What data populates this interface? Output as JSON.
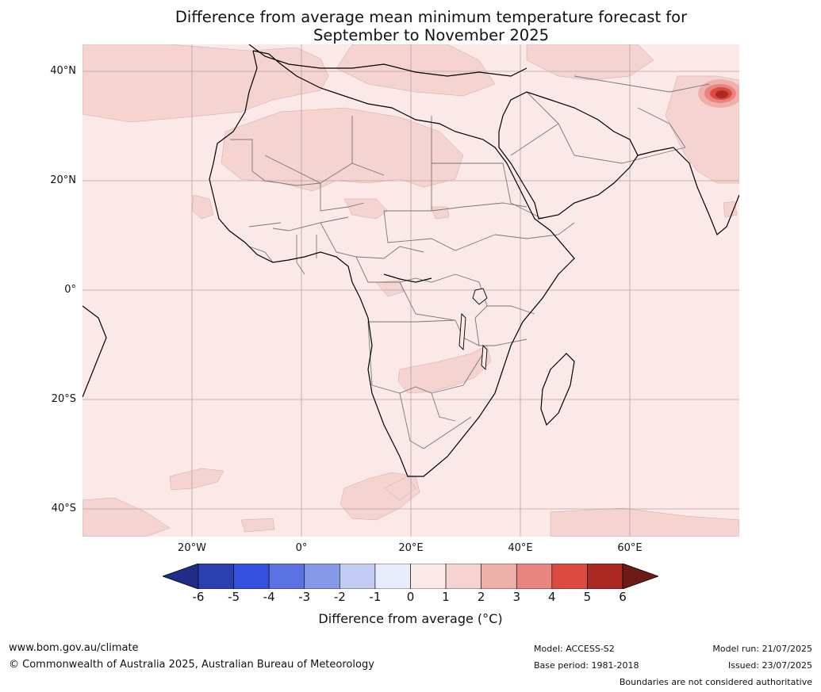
{
  "title": {
    "line1": "Difference from average mean minimum temperature forecast for",
    "line2": "September to November 2025"
  },
  "map": {
    "region": "Africa and Middle East",
    "lat_labels": [
      "40°N",
      "20°N",
      "0°",
      "20°S",
      "40°S"
    ],
    "lon_labels": [
      "20°W",
      "0°",
      "20°E",
      "40°E",
      "60°E"
    ],
    "background_color": "#fbe9e7",
    "anomaly_colors": {
      "0_to_1": "#fbe9e7",
      "1_to_2": "#f5d3d0",
      "2_to_3": "#eeb0ab",
      "3_to_4": "#e88580",
      "4_to_5": "#dc4b40",
      "5_to_6": "#ab2a24"
    }
  },
  "colorbar": {
    "ticks": [
      "-6",
      "-5",
      "-4",
      "-3",
      "-2",
      "-1",
      "0",
      "1",
      "2",
      "3",
      "4",
      "5",
      "6"
    ],
    "colors": [
      "#1f2d8a",
      "#2a3fb0",
      "#3350df",
      "#5b72e2",
      "#8799e6",
      "#c2cbf2",
      "#e8ebfa",
      "#fbe9e7",
      "#f5d3d0",
      "#eeb0ab",
      "#e88580",
      "#dc4b40",
      "#ab2a24",
      "#6e1b17"
    ],
    "title": "Difference from average (°C)"
  },
  "footer": {
    "website": "www.bom.gov.au/climate",
    "copyright": "© Commonwealth of Australia 2025, Australian Bureau of Meteorology",
    "model": "Model: ACCESS-S2",
    "base_period": "Base period: 1981-2018",
    "model_run": "Model run: 21/07/2025",
    "issued": "Issued: 23/07/2025",
    "disclaimer": "Boundaries are not considered authoritative"
  }
}
